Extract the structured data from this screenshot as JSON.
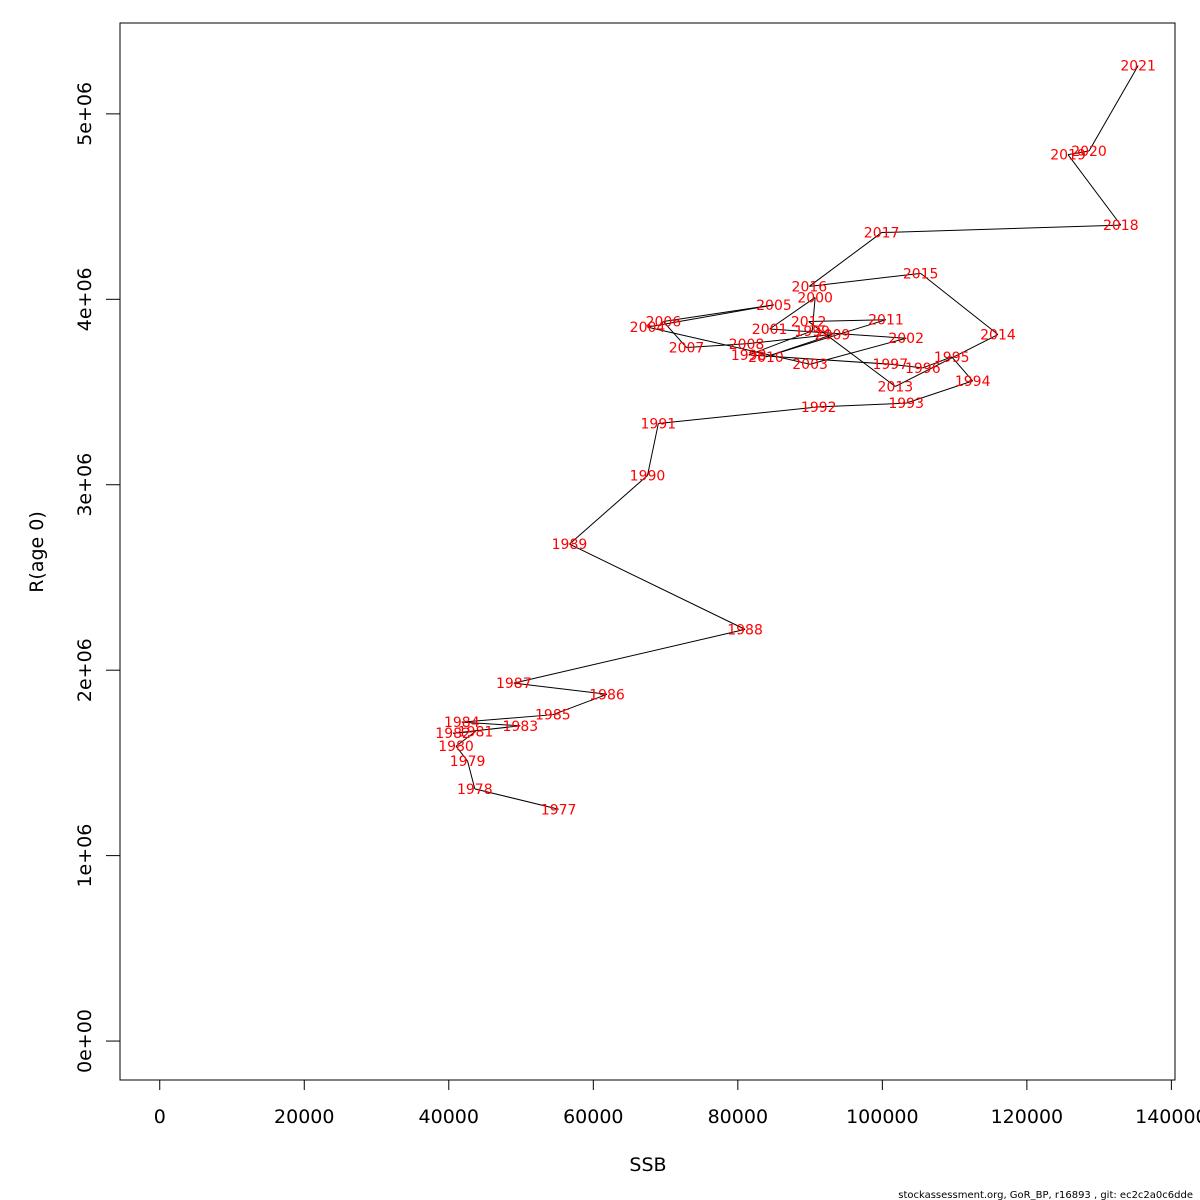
{
  "chart_data": {
    "type": "line",
    "xlabel": "SSB",
    "ylabel": "R(age 0)",
    "xlim": [
      -5500,
      140500
    ],
    "ylim": [
      -210000,
      5490000
    ],
    "x_ticks": [
      0,
      20000,
      40000,
      60000,
      80000,
      100000,
      120000,
      140000
    ],
    "x_tick_labels": [
      "0",
      "20000",
      "40000",
      "60000",
      "80000",
      "100000",
      "120000",
      "140000"
    ],
    "y_ticks": [
      0,
      1000000,
      2000000,
      3000000,
      4000000,
      5000000
    ],
    "y_tick_labels": [
      "0e+00",
      "1e+06",
      "2e+06",
      "3e+06",
      "4e+06",
      "5e+06"
    ],
    "grid": false,
    "line_color": "#000000",
    "label_color": "#ff0000",
    "points": [
      {
        "year": "1977",
        "ssb": 55200,
        "r": 1250000
      },
      {
        "year": "1978",
        "ssb": 43600,
        "r": 1360000
      },
      {
        "year": "1979",
        "ssb": 42600,
        "r": 1510000
      },
      {
        "year": "1980",
        "ssb": 41000,
        "r": 1590000
      },
      {
        "year": "1981",
        "ssb": 43700,
        "r": 1670000
      },
      {
        "year": "1982",
        "ssb": 40600,
        "r": 1660000
      },
      {
        "year": "1983",
        "ssb": 49900,
        "r": 1700000
      },
      {
        "year": "1984",
        "ssb": 41800,
        "r": 1720000
      },
      {
        "year": "1985",
        "ssb": 54400,
        "r": 1760000
      },
      {
        "year": "1986",
        "ssb": 61900,
        "r": 1870000
      },
      {
        "year": "1987",
        "ssb": 49000,
        "r": 1930000
      },
      {
        "year": "1988",
        "ssb": 81000,
        "r": 2220000
      },
      {
        "year": "1989",
        "ssb": 56700,
        "r": 2680000
      },
      {
        "year": "1990",
        "ssb": 67500,
        "r": 3050000
      },
      {
        "year": "1991",
        "ssb": 69000,
        "r": 3330000
      },
      {
        "year": "1992",
        "ssb": 91200,
        "r": 3420000
      },
      {
        "year": "1993",
        "ssb": 103300,
        "r": 3440000
      },
      {
        "year": "1994",
        "ssb": 112500,
        "r": 3560000
      },
      {
        "year": "1995",
        "ssb": 109600,
        "r": 3690000
      },
      {
        "year": "1996",
        "ssb": 105600,
        "r": 3630000
      },
      {
        "year": "1997",
        "ssb": 101100,
        "r": 3650000
      },
      {
        "year": "1998",
        "ssb": 81500,
        "r": 3700000
      },
      {
        "year": "1999",
        "ssb": 90300,
        "r": 3830000
      },
      {
        "year": "2000",
        "ssb": 90700,
        "r": 4010000
      },
      {
        "year": "2001",
        "ssb": 84400,
        "r": 3840000
      },
      {
        "year": "2002",
        "ssb": 103300,
        "r": 3790000
      },
      {
        "year": "2003",
        "ssb": 90000,
        "r": 3650000
      },
      {
        "year": "2004",
        "ssb": 67500,
        "r": 3850000
      },
      {
        "year": "2005",
        "ssb": 85000,
        "r": 3970000
      },
      {
        "year": "2006",
        "ssb": 69700,
        "r": 3880000
      },
      {
        "year": "2007",
        "ssb": 72900,
        "r": 3740000
      },
      {
        "year": "2008",
        "ssb": 81200,
        "r": 3760000
      },
      {
        "year": "2009",
        "ssb": 93100,
        "r": 3810000
      },
      {
        "year": "2010",
        "ssb": 83900,
        "r": 3690000
      },
      {
        "year": "2011",
        "ssb": 100500,
        "r": 3890000
      },
      {
        "year": "2012",
        "ssb": 89800,
        "r": 3880000
      },
      {
        "year": "2013",
        "ssb": 101800,
        "r": 3530000
      },
      {
        "year": "2014",
        "ssb": 116000,
        "r": 3810000
      },
      {
        "year": "2015",
        "ssb": 105300,
        "r": 4140000
      },
      {
        "year": "2016",
        "ssb": 89900,
        "r": 4070000
      },
      {
        "year": "2017",
        "ssb": 99900,
        "r": 4360000
      },
      {
        "year": "2018",
        "ssb": 133000,
        "r": 4400000
      },
      {
        "year": "2019",
        "ssb": 125700,
        "r": 4780000
      },
      {
        "year": "2020",
        "ssb": 128600,
        "r": 4800000
      },
      {
        "year": "2021",
        "ssb": 135400,
        "r": 5260000
      }
    ]
  },
  "footer": "stockassessment.org, GoR_BP, r16893 , git: ec2c2a0c6dde"
}
